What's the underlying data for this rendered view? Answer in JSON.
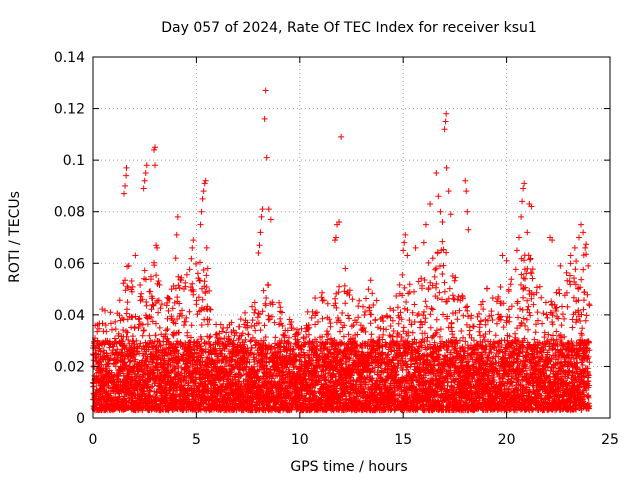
{
  "chart_data": {
    "type": "scatter",
    "title": "Day 057 of 2024, Rate Of TEC Index for receiver ksu1",
    "xlabel": "GPS time / hours",
    "ylabel": "ROTI / TECUs",
    "xlim": [
      0,
      25
    ],
    "ylim": [
      0,
      0.14
    ],
    "x_ticks": [
      0,
      5,
      10,
      15,
      20,
      25
    ],
    "x_tick_labels": [
      "0",
      "5",
      "10",
      "15",
      "20",
      "25"
    ],
    "y_ticks": [
      0,
      0.02,
      0.04,
      0.06,
      0.08,
      0.1,
      0.12,
      0.14
    ],
    "y_tick_labels": [
      "0",
      "0.02",
      "0.04",
      "0.06",
      "0.08",
      "0.1",
      "0.12",
      "0.14"
    ],
    "grid": true,
    "marker": "+",
    "marker_color": "#ff0000",
    "baseline_range": [
      0.003,
      0.03
    ],
    "envelope": [
      {
        "x": 0.0,
        "peak": 0.035
      },
      {
        "x": 0.5,
        "peak": 0.045
      },
      {
        "x": 1.0,
        "peak": 0.04
      },
      {
        "x": 1.5,
        "peak": 0.055
      },
      {
        "x": 1.75,
        "peak": 0.065
      },
      {
        "x": 2.0,
        "peak": 0.045
      },
      {
        "x": 2.5,
        "peak": 0.06
      },
      {
        "x": 3.0,
        "peak": 0.065
      },
      {
        "x": 3.5,
        "peak": 0.045
      },
      {
        "x": 4.0,
        "peak": 0.055
      },
      {
        "x": 4.5,
        "peak": 0.06
      },
      {
        "x": 5.0,
        "peak": 0.065
      },
      {
        "x": 5.5,
        "peak": 0.055
      },
      {
        "x": 6.0,
        "peak": 0.035
      },
      {
        "x": 6.5,
        "peak": 0.04
      },
      {
        "x": 7.0,
        "peak": 0.035
      },
      {
        "x": 7.5,
        "peak": 0.05
      },
      {
        "x": 8.0,
        "peak": 0.045
      },
      {
        "x": 8.5,
        "peak": 0.055
      },
      {
        "x": 9.0,
        "peak": 0.045
      },
      {
        "x": 9.5,
        "peak": 0.04
      },
      {
        "x": 10.0,
        "peak": 0.035
      },
      {
        "x": 10.5,
        "peak": 0.045
      },
      {
        "x": 11.0,
        "peak": 0.05
      },
      {
        "x": 11.5,
        "peak": 0.045
      },
      {
        "x": 12.0,
        "peak": 0.055
      },
      {
        "x": 12.5,
        "peak": 0.05
      },
      {
        "x": 13.0,
        "peak": 0.045
      },
      {
        "x": 13.5,
        "peak": 0.055
      },
      {
        "x": 14.0,
        "peak": 0.04
      },
      {
        "x": 14.5,
        "peak": 0.045
      },
      {
        "x": 15.0,
        "peak": 0.06
      },
      {
        "x": 15.5,
        "peak": 0.05
      },
      {
        "x": 16.0,
        "peak": 0.06
      },
      {
        "x": 16.5,
        "peak": 0.065
      },
      {
        "x": 17.0,
        "peak": 0.07
      },
      {
        "x": 17.5,
        "peak": 0.055
      },
      {
        "x": 18.0,
        "peak": 0.045
      },
      {
        "x": 18.5,
        "peak": 0.04
      },
      {
        "x": 19.0,
        "peak": 0.05
      },
      {
        "x": 19.5,
        "peak": 0.055
      },
      {
        "x": 20.0,
        "peak": 0.05
      },
      {
        "x": 20.5,
        "peak": 0.06
      },
      {
        "x": 21.0,
        "peak": 0.065
      },
      {
        "x": 21.5,
        "peak": 0.055
      },
      {
        "x": 22.0,
        "peak": 0.045
      },
      {
        "x": 22.5,
        "peak": 0.05
      },
      {
        "x": 23.0,
        "peak": 0.06
      },
      {
        "x": 23.5,
        "peak": 0.065
      },
      {
        "x": 24.0,
        "peak": 0.07
      }
    ],
    "outliers": [
      {
        "x": 1.5,
        "y": 0.087
      },
      {
        "x": 1.55,
        "y": 0.09
      },
      {
        "x": 1.6,
        "y": 0.094
      },
      {
        "x": 1.62,
        "y": 0.097
      },
      {
        "x": 2.05,
        "y": 0.063
      },
      {
        "x": 2.45,
        "y": 0.089
      },
      {
        "x": 2.5,
        "y": 0.092
      },
      {
        "x": 2.55,
        "y": 0.095
      },
      {
        "x": 2.6,
        "y": 0.098
      },
      {
        "x": 2.95,
        "y": 0.104
      },
      {
        "x": 3.0,
        "y": 0.105
      },
      {
        "x": 3.0,
        "y": 0.098
      },
      {
        "x": 3.05,
        "y": 0.067
      },
      {
        "x": 3.1,
        "y": 0.066
      },
      {
        "x": 4.0,
        "y": 0.062
      },
      {
        "x": 4.05,
        "y": 0.071
      },
      {
        "x": 4.1,
        "y": 0.078
      },
      {
        "x": 4.8,
        "y": 0.066
      },
      {
        "x": 4.85,
        "y": 0.069
      },
      {
        "x": 5.2,
        "y": 0.075
      },
      {
        "x": 5.25,
        "y": 0.08
      },
      {
        "x": 5.3,
        "y": 0.085
      },
      {
        "x": 5.35,
        "y": 0.088
      },
      {
        "x": 5.4,
        "y": 0.091
      },
      {
        "x": 5.45,
        "y": 0.092
      },
      {
        "x": 5.5,
        "y": 0.066
      },
      {
        "x": 5.55,
        "y": 0.058
      },
      {
        "x": 8.0,
        "y": 0.064
      },
      {
        "x": 8.05,
        "y": 0.067
      },
      {
        "x": 8.1,
        "y": 0.072
      },
      {
        "x": 8.15,
        "y": 0.078
      },
      {
        "x": 8.2,
        "y": 0.081
      },
      {
        "x": 8.3,
        "y": 0.116
      },
      {
        "x": 8.35,
        "y": 0.127
      },
      {
        "x": 8.4,
        "y": 0.101
      },
      {
        "x": 8.5,
        "y": 0.081
      },
      {
        "x": 8.6,
        "y": 0.077
      },
      {
        "x": 11.7,
        "y": 0.069
      },
      {
        "x": 11.75,
        "y": 0.07
      },
      {
        "x": 11.8,
        "y": 0.075
      },
      {
        "x": 11.9,
        "y": 0.076
      },
      {
        "x": 12.0,
        "y": 0.109
      },
      {
        "x": 12.2,
        "y": 0.058
      },
      {
        "x": 15.0,
        "y": 0.065
      },
      {
        "x": 15.05,
        "y": 0.068
      },
      {
        "x": 15.1,
        "y": 0.071
      },
      {
        "x": 15.2,
        "y": 0.063
      },
      {
        "x": 15.6,
        "y": 0.066
      },
      {
        "x": 16.0,
        "y": 0.068
      },
      {
        "x": 16.1,
        "y": 0.075
      },
      {
        "x": 16.3,
        "y": 0.083
      },
      {
        "x": 16.6,
        "y": 0.095
      },
      {
        "x": 16.7,
        "y": 0.086
      },
      {
        "x": 16.8,
        "y": 0.08
      },
      {
        "x": 16.9,
        "y": 0.076
      },
      {
        "x": 17.0,
        "y": 0.112
      },
      {
        "x": 17.05,
        "y": 0.115
      },
      {
        "x": 17.08,
        "y": 0.118
      },
      {
        "x": 17.1,
        "y": 0.097
      },
      {
        "x": 17.2,
        "y": 0.088
      },
      {
        "x": 17.3,
        "y": 0.079
      },
      {
        "x": 18.0,
        "y": 0.092
      },
      {
        "x": 18.05,
        "y": 0.088
      },
      {
        "x": 18.1,
        "y": 0.08
      },
      {
        "x": 18.15,
        "y": 0.073
      },
      {
        "x": 19.8,
        "y": 0.063
      },
      {
        "x": 20.0,
        "y": 0.061
      },
      {
        "x": 20.5,
        "y": 0.065
      },
      {
        "x": 20.6,
        "y": 0.07
      },
      {
        "x": 20.7,
        "y": 0.078
      },
      {
        "x": 20.75,
        "y": 0.084
      },
      {
        "x": 20.8,
        "y": 0.089
      },
      {
        "x": 20.85,
        "y": 0.091
      },
      {
        "x": 21.0,
        "y": 0.072
      },
      {
        "x": 21.1,
        "y": 0.083
      },
      {
        "x": 21.2,
        "y": 0.082
      },
      {
        "x": 22.1,
        "y": 0.07
      },
      {
        "x": 22.2,
        "y": 0.069
      },
      {
        "x": 22.6,
        "y": 0.059
      },
      {
        "x": 23.1,
        "y": 0.063
      },
      {
        "x": 23.3,
        "y": 0.066
      },
      {
        "x": 23.5,
        "y": 0.07
      },
      {
        "x": 23.6,
        "y": 0.075
      },
      {
        "x": 23.7,
        "y": 0.072
      },
      {
        "x": 23.8,
        "y": 0.066
      }
    ],
    "sample_step_hours": 0.025,
    "seed": 57
  }
}
